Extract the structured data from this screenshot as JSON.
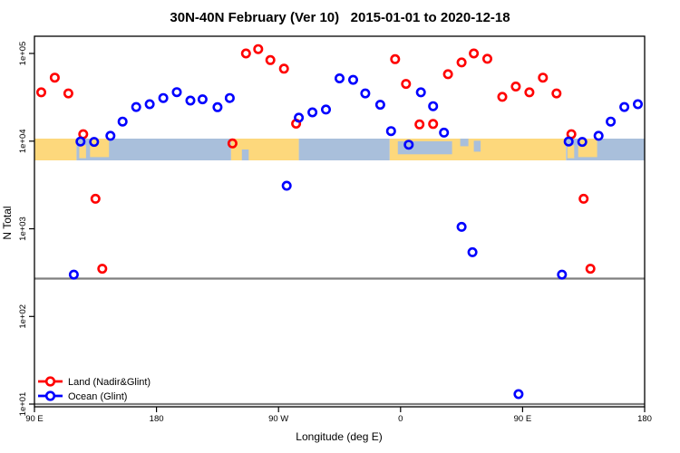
{
  "chart_data": {
    "type": "scatter",
    "title": "30N-40N February (Ver 10)   2015-01-01 to 2020-12-18",
    "xlabel": "Longitude (deg E)",
    "ylabel": "N Total",
    "x_axis": {
      "kind": "longitude, wraps eastward from 90E through 180, 90W, 0, back to 180",
      "range_continuous_deg": [
        90,
        540
      ],
      "ticks": [
        {
          "deg": 90,
          "label": "90 E"
        },
        {
          "deg": 180,
          "label": "180"
        },
        {
          "deg": 270,
          "label": "90 W"
        },
        {
          "deg": 360,
          "label": "0"
        },
        {
          "deg": 450,
          "label": "90 E"
        },
        {
          "deg": 540,
          "label": "180"
        }
      ],
      "duplicate_rule": "points with longitude 90E-180E are plotted twice (once per axis cycle)"
    },
    "y_axis": {
      "scale": "log10",
      "range": [
        9,
        170000
      ],
      "ticks": [
        {
          "value": 100000,
          "label": "1e+05"
        },
        {
          "value": 10000,
          "label": "1e+04"
        },
        {
          "value": 1000,
          "label": "1e+03"
        },
        {
          "value": 100,
          "label": "1e+02"
        },
        {
          "value": 10,
          "label": "1e+01"
        }
      ]
    },
    "reference_lines": {
      "values": [
        270,
        10
      ],
      "color": "#7f7f7f"
    },
    "legend_position": "bottom-left",
    "series": [
      {
        "name": "Land (Nadir&Glint)",
        "color": "#ff0000",
        "points": [
          [
            95,
            36000
          ],
          [
            105,
            53000
          ],
          [
            115,
            35000
          ],
          [
            126,
            12000
          ],
          [
            135,
            2200
          ],
          [
            140,
            350
          ],
          [
            236,
            9400
          ],
          [
            246,
            100000
          ],
          [
            255,
            112000
          ],
          [
            264,
            84000
          ],
          [
            274,
            67000
          ],
          [
            283,
            15800
          ],
          [
            356,
            86000
          ],
          [
            4,
            45000
          ],
          [
            14,
            15500
          ],
          [
            24,
            15700
          ],
          [
            35,
            58000
          ],
          [
            45,
            79000
          ],
          [
            54,
            100000
          ],
          [
            64,
            87000
          ],
          [
            75,
            32000
          ],
          [
            85,
            42000
          ]
        ]
      },
      {
        "name": "Ocean (Glint)",
        "color": "#0000ff",
        "points": [
          [
            119,
            300
          ],
          [
            124,
            9900
          ],
          [
            134,
            9800
          ],
          [
            146,
            11500
          ],
          [
            155,
            16700
          ],
          [
            165,
            24500
          ],
          [
            175,
            26400
          ],
          [
            185,
            31000
          ],
          [
            195,
            36200
          ],
          [
            205,
            29000
          ],
          [
            214,
            30000
          ],
          [
            225,
            24400
          ],
          [
            234,
            31000
          ],
          [
            276,
            3100
          ],
          [
            285,
            18500
          ],
          [
            295,
            21300
          ],
          [
            305,
            22900
          ],
          [
            315,
            52000
          ],
          [
            325,
            50000
          ],
          [
            334,
            35000
          ],
          [
            345,
            26000
          ],
          [
            353,
            13000
          ],
          [
            6,
            9100
          ],
          [
            15,
            36000
          ],
          [
            24,
            25000
          ],
          [
            32,
            12500
          ],
          [
            45,
            1050
          ],
          [
            53,
            540
          ],
          [
            87,
            13
          ]
        ]
      }
    ],
    "map_band": {
      "description": "strip of world map (30N-40N latitude band) drawn across the plot near N=1e+04",
      "value_span": [
        6300,
        10500
      ],
      "land_color": "#fdd87c",
      "ocean_color": "#a9bfdb",
      "segments": [
        {
          "from": 90,
          "to": 121,
          "type": "land"
        },
        {
          "from": 121,
          "to": 235,
          "type": "ocean"
        },
        {
          "from": 123,
          "to": 128,
          "type": "land",
          "y": [
            0.3,
            0.9
          ]
        },
        {
          "from": 131,
          "to": 145,
          "type": "land",
          "y": [
            0.0,
            0.85
          ]
        },
        {
          "from": 235,
          "to": 285,
          "type": "land"
        },
        {
          "from": 243,
          "to": 248,
          "type": "ocean",
          "y": [
            0.5,
            1.0
          ]
        },
        {
          "from": 285,
          "to": 352,
          "type": "ocean"
        },
        {
          "from": 352,
          "to": 482,
          "type": "land"
        },
        {
          "from": 358,
          "to": 398,
          "type": "ocean",
          "y": [
            0.12,
            0.72
          ]
        },
        {
          "from": 404,
          "to": 410,
          "type": "ocean",
          "y": [
            0.0,
            0.35
          ]
        },
        {
          "from": 414,
          "to": 419,
          "type": "ocean",
          "y": [
            0.1,
            0.6
          ]
        },
        {
          "from": 482,
          "to": 540,
          "type": "ocean"
        },
        {
          "from": 483,
          "to": 488,
          "type": "land",
          "y": [
            0.3,
            0.9
          ]
        },
        {
          "from": 491,
          "to": 505,
          "type": "land",
          "y": [
            0.0,
            0.85
          ]
        }
      ]
    }
  }
}
